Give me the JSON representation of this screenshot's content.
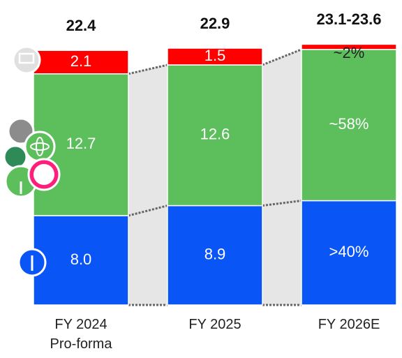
{
  "chart_data": {
    "type": "bar",
    "stacked": true,
    "categories": [
      "FY 2024 Pro-forma",
      "FY 2025",
      "FY 2026E"
    ],
    "series": [
      {
        "color": "#0a55f5",
        "values": [
          8.0,
          8.9,
          null
        ],
        "shares": [
          null,
          null,
          40
        ],
        "value_labels": [
          "8.0",
          "8.9",
          ">40%"
        ]
      },
      {
        "color": "#5cbf5c",
        "values": [
          12.7,
          12.6,
          null
        ],
        "shares": [
          null,
          null,
          58
        ],
        "value_labels": [
          "12.7",
          "12.6",
          "~58%"
        ]
      },
      {
        "color": "#ff0000",
        "values": [
          2.1,
          1.5,
          null
        ],
        "shares": [
          null,
          null,
          2
        ],
        "value_labels": [
          "2.1",
          "1.5",
          "~2%"
        ]
      }
    ],
    "totals": [
      22.4,
      22.9,
      [
        23.1,
        23.6
      ]
    ],
    "total_labels": [
      null,
      null,
      "23.1-23.6"
    ],
    "ylim": [
      0,
      27
    ]
  }
}
